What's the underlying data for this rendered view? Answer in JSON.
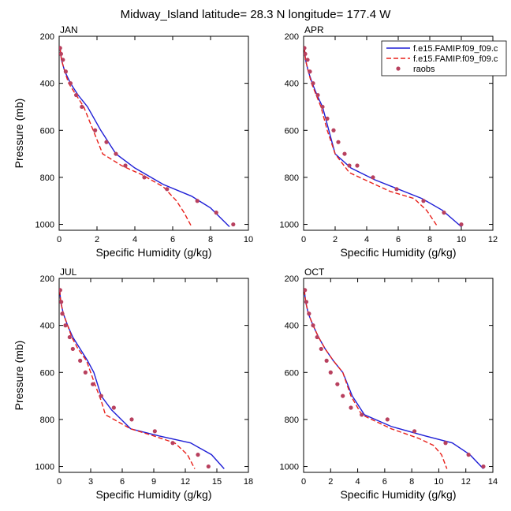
{
  "figure": {
    "title": "Midway_Island  latitude= 28.3 N longitude= 177.4 W"
  },
  "legend": {
    "placement": "top-right",
    "entries": [
      {
        "label": "f.e15.FAMIP.f09_f09.c",
        "color": "#1f1fd6",
        "style": "solid"
      },
      {
        "label": "f.e15.FAMIP.f09_f09.c",
        "color": "#e8201a",
        "style": "dashed"
      },
      {
        "label": "raobs",
        "color": "#b8405e",
        "style": "marker"
      }
    ]
  },
  "chart_data": [
    {
      "type": "line",
      "title": "JAN",
      "xlabel": "Specific Humidity (g/kg)",
      "ylabel": "Pressure (mb)",
      "xlim": [
        0,
        10
      ],
      "ylim": [
        200,
        1025
      ],
      "y_inverted": true,
      "xticks": [
        0,
        2,
        4,
        6,
        8,
        10
      ],
      "yticks": [
        200,
        400,
        600,
        800,
        1000
      ],
      "series": [
        {
          "name": "f.e15.FAMIP.f09_f09.c",
          "color": "#1f1fd6",
          "style": "solid",
          "x": [
            0.05,
            0.12,
            0.3,
            0.6,
            1.0,
            1.5,
            2.2,
            3.0,
            4.0,
            5.5,
            7.0,
            8.0,
            8.5,
            9.0
          ],
          "y": [
            250,
            300,
            350,
            400,
            450,
            500,
            600,
            700,
            760,
            830,
            880,
            930,
            970,
            1010
          ]
        },
        {
          "name": "f.e15.FAMIP.f09_f09.c",
          "color": "#e8201a",
          "style": "dashed",
          "x": [
            0.05,
            0.12,
            0.3,
            0.5,
            0.9,
            1.3,
            1.8,
            2.3,
            3.3,
            4.4,
            5.5,
            6.2,
            6.6,
            7.0
          ],
          "y": [
            250,
            300,
            350,
            400,
            450,
            500,
            600,
            700,
            750,
            790,
            840,
            900,
            950,
            1010
          ]
        },
        {
          "name": "raobs",
          "color": "#b8405e",
          "style": "marker",
          "x": [
            0.05,
            0.1,
            0.2,
            0.35,
            0.6,
            0.9,
            1.2,
            1.9,
            2.5,
            3.0,
            3.5,
            4.5,
            5.7,
            7.3,
            8.3,
            9.2
          ],
          "y": [
            250,
            275,
            300,
            350,
            400,
            450,
            500,
            600,
            650,
            700,
            750,
            800,
            850,
            900,
            950,
            1000
          ]
        }
      ]
    },
    {
      "type": "line",
      "title": "APR",
      "xlabel": "Specific Humidity (g/kg)",
      "ylabel": "",
      "xlim": [
        0,
        12
      ],
      "ylim": [
        200,
        1025
      ],
      "y_inverted": true,
      "xticks": [
        0,
        2,
        4,
        6,
        8,
        10,
        12
      ],
      "yticks": [
        200,
        400,
        600,
        800,
        1000
      ],
      "series": [
        {
          "name": "f.e15.FAMIP.f09_f09.c",
          "color": "#1f1fd6",
          "style": "solid",
          "x": [
            0.05,
            0.12,
            0.3,
            0.55,
            0.85,
            1.2,
            1.6,
            2.0,
            3.0,
            4.5,
            6.0,
            7.5,
            8.8,
            10.0
          ],
          "y": [
            250,
            300,
            350,
            400,
            450,
            500,
            600,
            700,
            760,
            810,
            850,
            890,
            940,
            1010
          ]
        },
        {
          "name": "f.e15.FAMIP.f09_f09.c",
          "color": "#e8201a",
          "style": "dashed",
          "x": [
            0.05,
            0.12,
            0.3,
            0.5,
            0.8,
            1.1,
            1.5,
            2.0,
            2.9,
            4.2,
            5.5,
            7.0,
            7.8,
            8.5
          ],
          "y": [
            250,
            300,
            350,
            400,
            450,
            500,
            600,
            700,
            780,
            820,
            860,
            890,
            940,
            1010
          ]
        },
        {
          "name": "raobs",
          "color": "#b8405e",
          "style": "marker",
          "x": [
            0.05,
            0.1,
            0.25,
            0.4,
            0.6,
            0.9,
            1.2,
            1.5,
            1.9,
            2.2,
            2.6,
            2.9,
            3.4,
            4.4,
            5.9,
            7.6,
            8.9,
            10.0
          ],
          "y": [
            250,
            275,
            300,
            350,
            400,
            450,
            500,
            550,
            600,
            650,
            700,
            750,
            750,
            800,
            850,
            900,
            950,
            1000
          ]
        }
      ]
    },
    {
      "type": "line",
      "title": "JUL",
      "xlabel": "Specific Humidity (g/kg)",
      "ylabel": "Pressure (mb)",
      "xlim": [
        0,
        18
      ],
      "ylim": [
        200,
        1025
      ],
      "y_inverted": true,
      "xticks": [
        0,
        3,
        6,
        9,
        12,
        15,
        18
      ],
      "yticks": [
        200,
        400,
        600,
        800,
        1000
      ],
      "series": [
        {
          "name": "f.e15.FAMIP.f09_f09.c",
          "color": "#1f1fd6",
          "style": "solid",
          "x": [
            0.05,
            0.15,
            0.4,
            0.8,
            1.3,
            2.0,
            2.7,
            3.3,
            4.0,
            5.0,
            6.8,
            9.5,
            12.5,
            14.5,
            15.7
          ],
          "y": [
            250,
            300,
            350,
            400,
            450,
            500,
            550,
            600,
            700,
            760,
            840,
            870,
            900,
            950,
            1010
          ]
        },
        {
          "name": "f.e15.FAMIP.f09_f09.c",
          "color": "#e8201a",
          "style": "dashed",
          "x": [
            0.05,
            0.15,
            0.4,
            0.8,
            1.2,
            1.8,
            2.6,
            3.4,
            4.0,
            4.4,
            6.8,
            9.0,
            11.0,
            12.2,
            12.9
          ],
          "y": [
            250,
            300,
            350,
            400,
            450,
            500,
            550,
            650,
            720,
            780,
            840,
            870,
            900,
            950,
            1010
          ]
        },
        {
          "name": "raobs",
          "color": "#b8405e",
          "style": "marker",
          "x": [
            0.1,
            0.2,
            0.3,
            0.6,
            1.0,
            1.3,
            2.0,
            2.5,
            3.2,
            4.0,
            5.2,
            6.9,
            9.1,
            10.8,
            13.2,
            14.2
          ],
          "y": [
            250,
            300,
            350,
            400,
            450,
            500,
            550,
            600,
            650,
            700,
            750,
            800,
            850,
            900,
            950,
            1000
          ]
        }
      ]
    },
    {
      "type": "line",
      "title": "OCT",
      "xlabel": "Specific Humidity (g/kg)",
      "ylabel": "",
      "xlim": [
        0,
        14
      ],
      "ylim": [
        200,
        1025
      ],
      "y_inverted": true,
      "xticks": [
        0,
        2,
        4,
        6,
        8,
        10,
        12,
        14
      ],
      "yticks": [
        200,
        400,
        600,
        800,
        1000
      ],
      "series": [
        {
          "name": "f.e15.FAMIP.f09_f09.c",
          "color": "#1f1fd6",
          "style": "solid",
          "x": [
            0.05,
            0.15,
            0.35,
            0.7,
            1.1,
            1.6,
            2.2,
            2.9,
            3.6,
            4.5,
            6.5,
            9.0,
            11.0,
            12.3,
            13.3
          ],
          "y": [
            250,
            300,
            350,
            400,
            450,
            500,
            550,
            600,
            700,
            780,
            830,
            870,
            900,
            950,
            1010
          ]
        },
        {
          "name": "f.e15.FAMIP.f09_f09.c",
          "color": "#e8201a",
          "style": "dashed",
          "x": [
            0.05,
            0.15,
            0.35,
            0.7,
            1.1,
            1.6,
            2.2,
            2.9,
            3.5,
            4.3,
            6.5,
            8.5,
            9.6,
            10.2,
            10.6
          ],
          "y": [
            250,
            300,
            350,
            400,
            450,
            500,
            550,
            600,
            700,
            780,
            840,
            880,
            910,
            950,
            1010
          ]
        },
        {
          "name": "raobs",
          "color": "#b8405e",
          "style": "marker",
          "x": [
            0.1,
            0.2,
            0.4,
            0.7,
            1.0,
            1.3,
            1.7,
            2.0,
            2.5,
            2.9,
            3.5,
            4.3,
            6.2,
            8.2,
            10.5,
            12.2,
            13.3
          ],
          "y": [
            250,
            300,
            350,
            400,
            450,
            500,
            550,
            600,
            650,
            700,
            750,
            780,
            800,
            850,
            900,
            950,
            1000
          ]
        }
      ]
    }
  ]
}
